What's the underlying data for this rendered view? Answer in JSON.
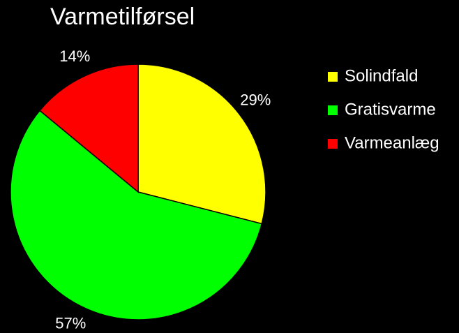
{
  "chart_data": {
    "type": "pie",
    "title": "Varmetilførsel",
    "categories": [
      "Solindfald",
      "Gratisvarme",
      "Varmeanlæg"
    ],
    "values": [
      29,
      57,
      14
    ],
    "value_labels": [
      "29%",
      "57%",
      "14%"
    ],
    "colors": [
      "#ffff00",
      "#00ff00",
      "#ff0000"
    ],
    "legend": "right"
  }
}
